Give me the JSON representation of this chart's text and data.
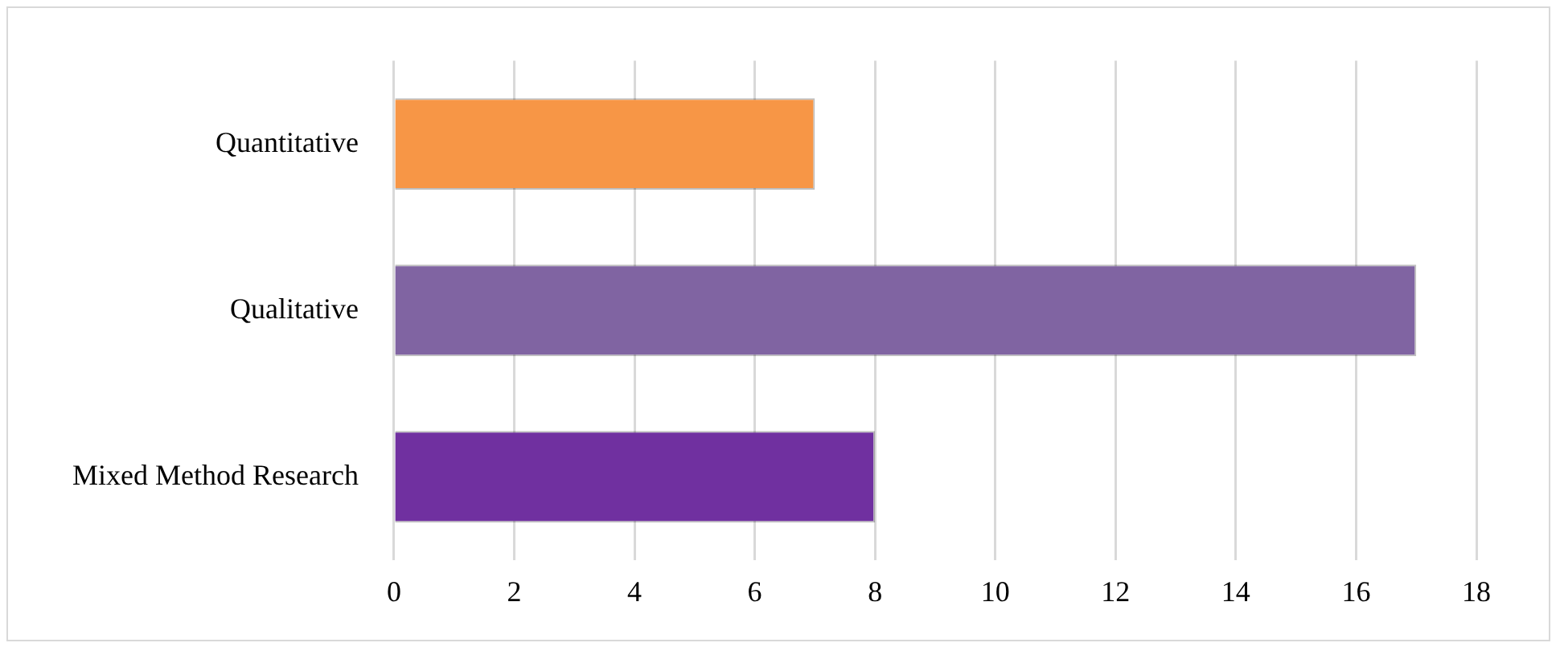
{
  "chart_data": {
    "type": "bar",
    "orientation": "horizontal",
    "categories": [
      "Quantitative",
      "Qualitative",
      "Mixed Method Research"
    ],
    "values": [
      7,
      17,
      8
    ],
    "colors": [
      "#f79646",
      "#8064a2",
      "#7030a0"
    ],
    "xlim": [
      0,
      18
    ],
    "xticks": [
      0,
      2,
      4,
      6,
      8,
      10,
      12,
      14,
      16,
      18
    ],
    "grid": "x"
  }
}
